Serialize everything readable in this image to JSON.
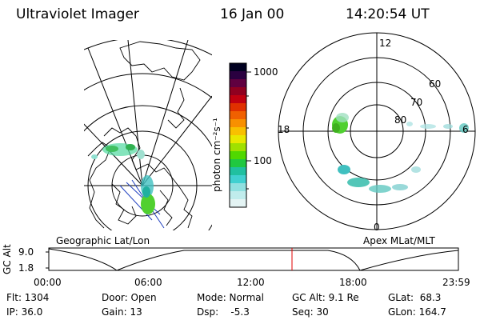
{
  "header": {
    "instrument": "Ultraviolet Imager",
    "date": "16 Jan 00",
    "time": "14:20:54 UT"
  },
  "colorbar": {
    "unit_label": "photon cm⁻²s⁻¹",
    "tick_labels": [
      "1000",
      "100"
    ],
    "colors": [
      "#000020",
      "#2a0040",
      "#600040",
      "#900020",
      "#c00010",
      "#e03000",
      "#f06000",
      "#f89000",
      "#f8c000",
      "#e8e800",
      "#a0e000",
      "#50d800",
      "#20c840",
      "#20c0a0",
      "#40d0d0",
      "#90e0e0",
      "#c0ecec",
      "#e4f4f4"
    ]
  },
  "geo_panel": {
    "label": "Geographic Lat/Lon"
  },
  "mag_panel": {
    "label": "Apex MLat/MLT",
    "mlt_labels": {
      "top": "12",
      "left": "18",
      "right": "6",
      "bottom": "0"
    },
    "lat_labels": [
      "60",
      "70",
      "80"
    ]
  },
  "altitude_plot": {
    "ylabel": "GC Alt",
    "y_ticks": [
      "9.0",
      "1.8"
    ],
    "x_ticks": [
      "00:00",
      "06:00",
      "12:00",
      "18:00",
      "23:59"
    ],
    "current_time_marker": "14:20:54"
  },
  "status": {
    "flt": "Flt: 1304",
    "ip": "IP: 36.0",
    "door": "Door: Open",
    "gain": "Gain: 13",
    "mode": "Mode: Normal",
    "dsp": "Dsp:    -5.3",
    "gc_alt": "GC Alt: 9.1 Re",
    "seq": "Seq: 30",
    "glat": "GLat:  68.3",
    "glon": "GLon: 164.7"
  }
}
